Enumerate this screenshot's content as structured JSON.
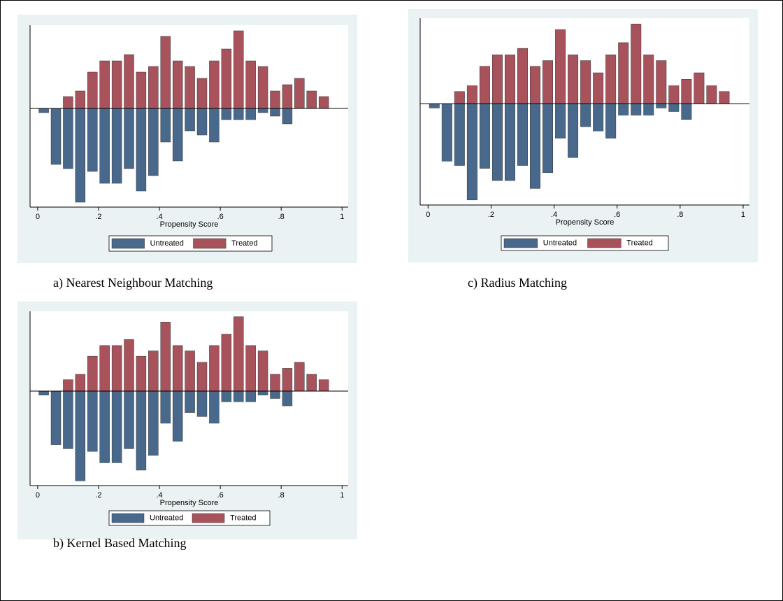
{
  "chart_data": [
    {
      "type": "bar",
      "caption": "a)    Nearest Neighbour Matching",
      "xlabel": "Propensity Score",
      "x": [
        0.02,
        0.06,
        0.1,
        0.14,
        0.18,
        0.22,
        0.26,
        0.3,
        0.34,
        0.38,
        0.42,
        0.46,
        0.5,
        0.54,
        0.58,
        0.62,
        0.66,
        0.7,
        0.74,
        0.78,
        0.82,
        0.86,
        0.9,
        0.94
      ],
      "series": [
        {
          "name": "Untreated",
          "color": "#48698c",
          "values": [
            -6,
            -80,
            -86,
            -134,
            -90,
            -107,
            -107,
            -86,
            -118,
            -96,
            -48,
            -75,
            -32,
            -38,
            -48,
            -16,
            -16,
            -16,
            -6,
            -11,
            -22,
            0,
            0,
            0
          ]
        },
        {
          "name": "Treated",
          "color": "#a8525c",
          "values": [
            0,
            0,
            17,
            25,
            52,
            68,
            68,
            77,
            52,
            60,
            103,
            68,
            60,
            43,
            68,
            85,
            111,
            68,
            60,
            25,
            34,
            43,
            25,
            17
          ]
        }
      ],
      "xlim": [
        -0.025,
        1.02
      ],
      "ylim": [
        -141,
        119
      ],
      "xticks": [
        0,
        {
          "value": 0.2,
          "label": ".2"
        },
        {
          "value": 0.4,
          "label": ".4"
        },
        {
          "value": 0.6,
          "label": ".6"
        },
        {
          "value": 0.8,
          "label": ".8"
        },
        1
      ]
    },
    {
      "type": "bar",
      "caption": "c) Radius Matching",
      "xlabel": "Propensity Score",
      "x": [
        0.02,
        0.06,
        0.1,
        0.14,
        0.18,
        0.22,
        0.26,
        0.3,
        0.34,
        0.38,
        0.42,
        0.46,
        0.5,
        0.54,
        0.58,
        0.62,
        0.66,
        0.7,
        0.74,
        0.78,
        0.82,
        0.86,
        0.9,
        0.94
      ],
      "series": [
        {
          "name": "Untreated",
          "color": "#48698c",
          "values": [
            -6,
            -80,
            -86,
            -134,
            -90,
            -107,
            -107,
            -86,
            -118,
            -96,
            -48,
            -75,
            -32,
            -38,
            -48,
            -16,
            -16,
            -16,
            -6,
            -11,
            -22,
            0,
            0,
            0
          ]
        },
        {
          "name": "Treated",
          "color": "#a8525c",
          "values": [
            0,
            0,
            17,
            25,
            52,
            68,
            68,
            77,
            52,
            60,
            103,
            68,
            60,
            43,
            68,
            85,
            111,
            68,
            60,
            25,
            34,
            43,
            25,
            17
          ]
        }
      ],
      "xlim": [
        -0.025,
        1.02
      ],
      "ylim": [
        -141,
        119
      ],
      "xticks": [
        0,
        {
          "value": 0.2,
          "label": ".2"
        },
        {
          "value": 0.4,
          "label": ".4"
        },
        {
          "value": 0.6,
          "label": ".6"
        },
        {
          "value": 0.8,
          "label": ".8"
        },
        1
      ]
    },
    {
      "type": "bar",
      "caption": "b)    Kernel Based Matching",
      "xlabel": "Propensity Score",
      "x": [
        0.02,
        0.06,
        0.1,
        0.14,
        0.18,
        0.22,
        0.26,
        0.3,
        0.34,
        0.38,
        0.42,
        0.46,
        0.5,
        0.54,
        0.58,
        0.62,
        0.66,
        0.7,
        0.74,
        0.78,
        0.82,
        0.86,
        0.9,
        0.94
      ],
      "series": [
        {
          "name": "Untreated",
          "color": "#48698c",
          "values": [
            -6,
            -80,
            -86,
            -134,
            -90,
            -107,
            -107,
            -86,
            -118,
            -96,
            -48,
            -75,
            -32,
            -38,
            -48,
            -16,
            -16,
            -16,
            -6,
            -11,
            -22,
            0,
            0,
            0
          ]
        },
        {
          "name": "Treated",
          "color": "#a8525c",
          "values": [
            0,
            0,
            17,
            25,
            52,
            68,
            68,
            77,
            52,
            60,
            103,
            68,
            60,
            43,
            68,
            85,
            111,
            68,
            60,
            25,
            34,
            43,
            25,
            17
          ]
        }
      ],
      "xlim": [
        -0.025,
        1.02
      ],
      "ylim": [
        -141,
        119
      ],
      "xticks": [
        0,
        {
          "value": 0.2,
          "label": ".2"
        },
        {
          "value": 0.4,
          "label": ".4"
        },
        {
          "value": 0.6,
          "label": ".6"
        },
        {
          "value": 0.8,
          "label": ".8"
        },
        1
      ]
    }
  ]
}
